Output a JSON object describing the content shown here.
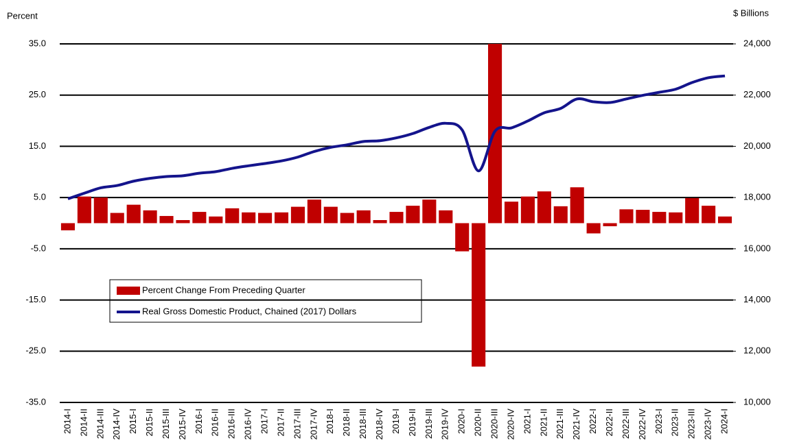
{
  "chart_data": {
    "type": "combo",
    "y_label": "Percent",
    "y2_label": "$ Billions",
    "categories": [
      "2014-I",
      "2014-II",
      "2014-III",
      "2014-IV",
      "2015-I",
      "2015-II",
      "2015-III",
      "2015-IV",
      "2016-I",
      "2016-II",
      "2016-III",
      "2016-IV",
      "2017-I",
      "2017-II",
      "2017-III",
      "2017-IV",
      "2018-I",
      "2018-II",
      "2018-III",
      "2018-IV",
      "2019-I",
      "2019-II",
      "2019-III",
      "2019-IV",
      "2020-I",
      "2020-II",
      "2020-III",
      "2020-IV",
      "2021-I",
      "2021-II",
      "2021-III",
      "2021-IV",
      "2022-I",
      "2022-II",
      "2022-III",
      "2022-IV",
      "2023-I",
      "2023-II",
      "2023-III",
      "2023-IV",
      "2024-I"
    ],
    "series": [
      {
        "name": "Percent Change From Preceding Quarter",
        "type": "bar",
        "color": "#c00000",
        "values": [
          -1.4,
          5.2,
          5.0,
          2.0,
          3.6,
          2.5,
          1.4,
          0.6,
          2.2,
          1.3,
          2.9,
          2.1,
          2.0,
          2.1,
          3.2,
          4.6,
          3.2,
          2.0,
          2.5,
          0.6,
          2.2,
          3.4,
          4.6,
          2.5,
          -5.5,
          -28.0,
          35.0,
          4.2,
          5.2,
          6.2,
          3.3,
          7.0,
          -2.0,
          -0.6,
          2.7,
          2.6,
          2.2,
          2.1,
          4.9,
          3.4,
          1.3
        ]
      },
      {
        "name": "Real Gross Domestic Product, Chained (2017) Dollars",
        "type": "line",
        "axis": "y2",
        "color": "#14148c",
        "values": [
          17950,
          18170,
          18380,
          18470,
          18640,
          18750,
          18820,
          18850,
          18950,
          19010,
          19140,
          19240,
          19330,
          19430,
          19580,
          19800,
          19960,
          20060,
          20190,
          20220,
          20330,
          20500,
          20740,
          20900,
          20640,
          19040,
          20590,
          20720,
          20990,
          21310,
          21480,
          21850,
          21740,
          21710,
          21850,
          21990,
          22110,
          22230,
          22490,
          22680,
          22750
        ]
      }
    ],
    "ylim": [
      -35,
      35
    ],
    "yticks": [
      {
        "value": -35,
        "label": "-35.0"
      },
      {
        "value": -25,
        "label": "-25.0"
      },
      {
        "value": -15,
        "label": "-15.0"
      },
      {
        "value": -5,
        "label": "-5.0"
      },
      {
        "value": 5,
        "label": "5.0"
      },
      {
        "value": 15,
        "label": "15.0"
      },
      {
        "value": 25,
        "label": "25.0"
      },
      {
        "value": 35,
        "label": "35.0"
      }
    ],
    "y2lim": [
      10000,
      24000
    ],
    "y2ticks": [
      {
        "value": 10000,
        "label": "10,000"
      },
      {
        "value": 12000,
        "label": "12,000"
      },
      {
        "value": 14000,
        "label": "14,000"
      },
      {
        "value": 16000,
        "label": "16,000"
      },
      {
        "value": 18000,
        "label": "18,000"
      },
      {
        "value": 20000,
        "label": "20,000"
      },
      {
        "value": 22000,
        "label": "22,000"
      },
      {
        "value": 24000,
        "label": "24,000"
      }
    ],
    "grid": true
  }
}
